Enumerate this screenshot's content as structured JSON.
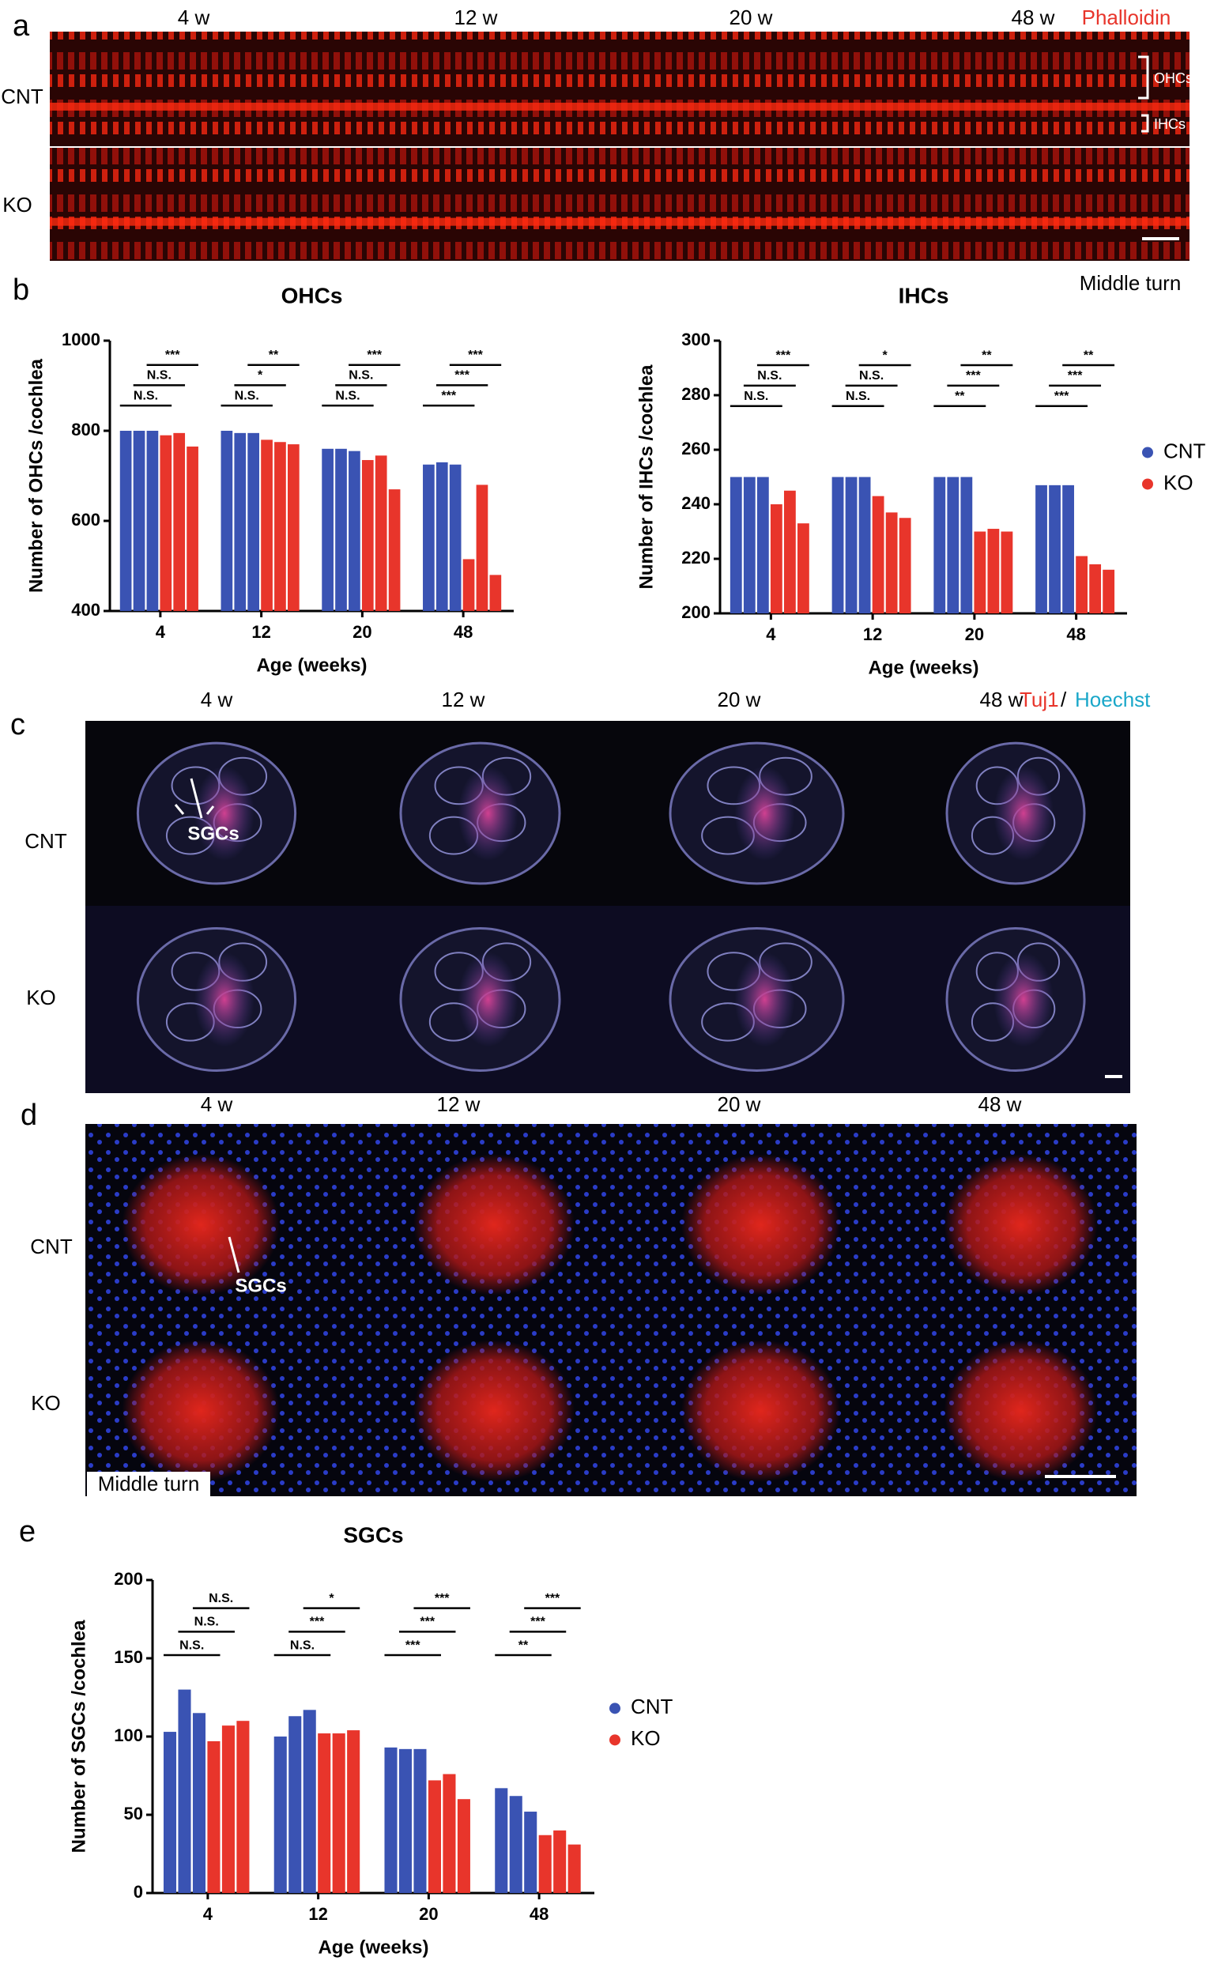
{
  "panels": {
    "a": {
      "letter": "a",
      "columns": [
        "4 w",
        "12 w",
        "20 w",
        "48 w"
      ],
      "stain": "Phalloidin",
      "rows": [
        "CNT",
        "KO"
      ],
      "markers": [
        "OHCs",
        "IHCs"
      ],
      "region": "Middle turn"
    },
    "b": {
      "letter": "b"
    },
    "c": {
      "letter": "c",
      "columns": [
        "4 w",
        "12 w",
        "20 w",
        "48 w"
      ],
      "stain": "Tuj1",
      "separator": "/",
      "counterstain": "Hoechst",
      "rows": [
        "CNT",
        "KO"
      ],
      "marker": "SGCs"
    },
    "d": {
      "letter": "d",
      "columns": [
        "4 w",
        "12 w",
        "20 w",
        "48 w"
      ],
      "rows": [
        "CNT",
        "KO"
      ],
      "marker": "SGCs",
      "region": "Middle turn"
    },
    "e": {
      "letter": "e"
    }
  },
  "chart_data": [
    {
      "type": "bar",
      "title": "OHCs",
      "x_label": "Age (weeks)",
      "y_label": "Number of OHCs /cochlea",
      "categories": [
        "4",
        "12",
        "20",
        "48"
      ],
      "series": [
        {
          "name": "CNT",
          "color": "#3a53b3",
          "values": [
            [
              800,
              800,
              800
            ],
            [
              800,
              795,
              795
            ],
            [
              760,
              760,
              755
            ],
            [
              725,
              730,
              725
            ]
          ]
        },
        {
          "name": "KO",
          "color": "#e8352b",
          "values": [
            [
              790,
              795,
              765
            ],
            [
              780,
              775,
              770
            ],
            [
              735,
              745,
              670
            ],
            [
              515,
              680,
              480
            ]
          ]
        }
      ],
      "significance": [
        [
          "N.S.",
          "N.S.",
          "***"
        ],
        [
          "N.S.",
          "*",
          "**"
        ],
        [
          "N.S.",
          "N.S.",
          "***"
        ],
        [
          "***",
          "***",
          "***"
        ]
      ],
      "ylim": [
        400,
        1000
      ],
      "yticks": [
        400,
        600,
        800,
        1000
      ],
      "legend": false
    },
    {
      "type": "bar",
      "title": "IHCs",
      "x_label": "Age (weeks)",
      "y_label": "Number of IHCs /cochlea",
      "categories": [
        "4",
        "12",
        "20",
        "48"
      ],
      "series": [
        {
          "name": "CNT",
          "color": "#3a53b3",
          "values": [
            [
              250,
              250,
              250
            ],
            [
              250,
              250,
              250
            ],
            [
              250,
              250,
              250
            ],
            [
              247,
              247,
              247
            ]
          ]
        },
        {
          "name": "KO",
          "color": "#e8352b",
          "values": [
            [
              240,
              245,
              233
            ],
            [
              243,
              237,
              235
            ],
            [
              230,
              231,
              230
            ],
            [
              221,
              218,
              216
            ]
          ]
        }
      ],
      "significance": [
        [
          "N.S.",
          "N.S.",
          "***"
        ],
        [
          "N.S.",
          "N.S.",
          "*"
        ],
        [
          "**",
          "***",
          "**"
        ],
        [
          "***",
          "***",
          "**"
        ]
      ],
      "ylim": [
        200,
        300
      ],
      "yticks": [
        200,
        220,
        240,
        260,
        280,
        300
      ],
      "legend": true
    },
    {
      "type": "bar",
      "title": "SGCs",
      "x_label": "Age (weeks)",
      "y_label": "Number of SGCs /cochlea",
      "categories": [
        "4",
        "12",
        "20",
        "48"
      ],
      "series": [
        {
          "name": "CNT",
          "color": "#3a53b3",
          "values": [
            [
              103,
              130,
              115
            ],
            [
              100,
              113,
              117
            ],
            [
              93,
              92,
              92
            ],
            [
              67,
              62,
              52
            ]
          ]
        },
        {
          "name": "KO",
          "color": "#e8352b",
          "values": [
            [
              97,
              107,
              110
            ],
            [
              102,
              102,
              104
            ],
            [
              72,
              76,
              60
            ],
            [
              37,
              40,
              31
            ]
          ]
        }
      ],
      "significance": [
        [
          "N.S.",
          "N.S.",
          "N.S."
        ],
        [
          "N.S.",
          "***",
          "*"
        ],
        [
          "***",
          "***",
          "***"
        ],
        [
          "**",
          "***",
          "***"
        ]
      ],
      "ylim": [
        0,
        200
      ],
      "yticks": [
        0,
        50,
        100,
        150,
        200
      ],
      "legend": true
    }
  ]
}
